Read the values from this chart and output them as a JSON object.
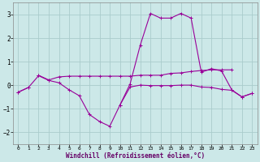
{
  "xlabel": "Windchill (Refroidissement éolien,°C)",
  "background_color": "#cce8e8",
  "grid_color": "#aacccc",
  "line_color": "#990099",
  "x_hours": [
    0,
    1,
    2,
    3,
    4,
    5,
    6,
    7,
    8,
    9,
    10,
    11,
    12,
    13,
    14,
    15,
    16,
    17,
    18,
    19,
    20,
    21,
    22,
    23
  ],
  "line1": [
    -0.3,
    -0.1,
    0.4,
    0.2,
    0.1,
    -0.2,
    -0.45,
    -1.25,
    -1.55,
    -1.75,
    -0.85,
    0.05,
    1.7,
    3.05,
    2.85,
    2.85,
    3.05,
    2.85,
    0.55,
    0.7,
    0.6,
    -0.2,
    -0.5,
    -0.35
  ],
  "line2": [
    null,
    null,
    0.42,
    0.22,
    0.35,
    0.38,
    0.38,
    0.38,
    0.38,
    0.38,
    0.38,
    0.38,
    0.42,
    0.42,
    0.42,
    0.5,
    0.52,
    0.58,
    0.62,
    0.65,
    0.65,
    0.65,
    null,
    null
  ],
  "line3": [
    -0.3,
    -0.1,
    null,
    null,
    null,
    null,
    null,
    null,
    null,
    null,
    -0.85,
    -0.08,
    0.0,
    -0.02,
    -0.02,
    -0.02,
    0.0,
    0.0,
    -0.08,
    -0.1,
    -0.18,
    -0.22,
    -0.5,
    -0.35
  ],
  "ylim": [
    -2.5,
    3.5
  ],
  "xlim": [
    -0.5,
    23.5
  ],
  "yticks": [
    -2,
    -1,
    0,
    1,
    2,
    3
  ],
  "xticks": [
    0,
    1,
    2,
    3,
    4,
    5,
    6,
    7,
    8,
    9,
    10,
    11,
    12,
    13,
    14,
    15,
    16,
    17,
    18,
    19,
    20,
    21,
    22,
    23
  ]
}
